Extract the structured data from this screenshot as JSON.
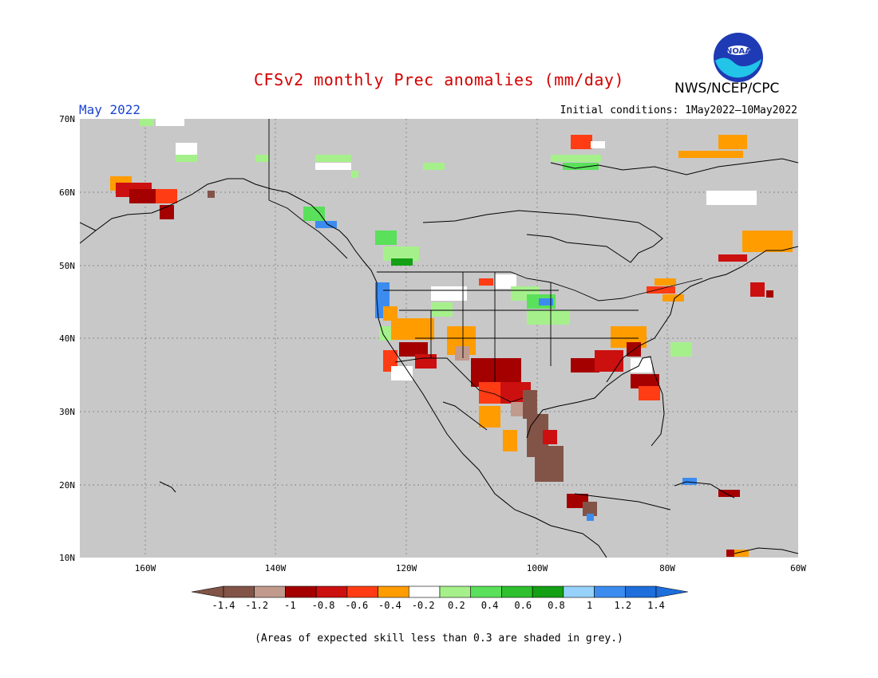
{
  "header": {
    "title": "CFSv2 monthly Prec anomalies (mm/day)",
    "month": "May 2022",
    "initial_conditions": "Initial conditions: 1May2022—10May2022",
    "agency": "NWS/NCEP/CPC",
    "logo_text": "NOAA"
  },
  "map": {
    "lon_range": [
      -170,
      -60
    ],
    "lat_range": [
      10,
      70
    ],
    "background_color": "#c8c8c8",
    "lat_ticks": [
      "70N",
      "60N",
      "50N",
      "40N",
      "30N",
      "20N",
      "10N"
    ],
    "lon_ticks": [
      "160W",
      "140W",
      "120W",
      "100W",
      "80W",
      "60W"
    ]
  },
  "colorbar": {
    "labels": [
      "-1.4",
      "-1.2",
      "-1",
      "-0.8",
      "-0.6",
      "-0.4",
      "-0.2",
      "0.2",
      "0.4",
      "0.6",
      "0.8",
      "1",
      "1.2",
      "1.4"
    ],
    "colors": [
      "#825448",
      "#c09a8c",
      "#a50000",
      "#cc1010",
      "#ff3c14",
      "#ff9c00",
      "#ffffff",
      "#a6f08c",
      "#5ae05a",
      "#2ec02e",
      "#14a014",
      "#96d2fa",
      "#3c8cf0",
      "#1e6edc"
    ]
  },
  "footnote": "(Areas of expected skill less than 0.3 are shaded in grey.)"
}
